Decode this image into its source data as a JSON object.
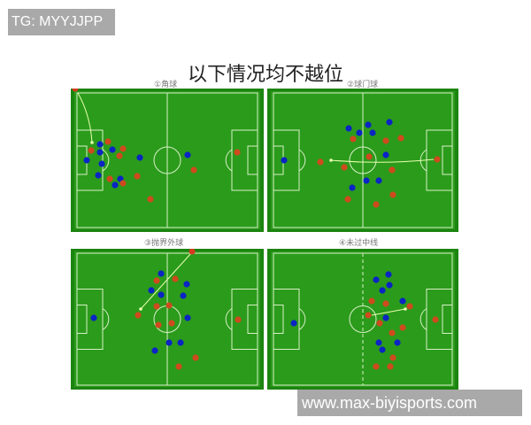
{
  "watermark_top": "TG: MYYJJPP",
  "watermark_bottom": "www.max-biyisports.com",
  "title": "以下情况均不越位",
  "panels": [
    {
      "label": "①角球"
    },
    {
      "label": "②球门球"
    },
    {
      "label": "③抛界外球"
    },
    {
      "label": "④未过中线"
    }
  ],
  "colors": {
    "pitch_border": "#1c8410",
    "pitch_field": "#2b9b1b",
    "lines": "#d8f0c8",
    "team_blue": "#0b24c4",
    "team_red": "#cf4a1e",
    "arrow": "#e8ffb0"
  }
}
